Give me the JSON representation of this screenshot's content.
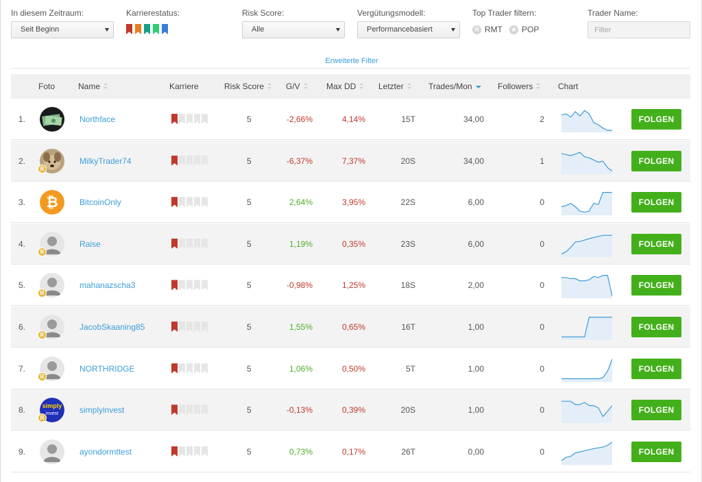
{
  "filters": {
    "period": {
      "label": "In diesem Zeitraum:",
      "value": "Seit Beginn"
    },
    "career": {
      "label": "Karrierestatus:",
      "flag_colors": [
        "#c0392b",
        "#e67e22",
        "#16a085",
        "#2ecc71",
        "#3b7fd4"
      ]
    },
    "risk": {
      "label": "Risk Score:",
      "value": "Alle"
    },
    "compensation": {
      "label": "Vergütungsmodell:",
      "value": "Performancebasiert"
    },
    "top_trader": {
      "label": "Top Trader filtern:",
      "rmt": "RMT",
      "pop": "POP",
      "rmt_icon": "R",
      "pop_icon": "★"
    },
    "trader_name": {
      "label": "Trader Name:",
      "placeholder": "Filter"
    },
    "advanced_link": "Erweiterte Filter"
  },
  "table": {
    "headers": {
      "photo": "Foto",
      "name": "Name",
      "career": "Karriere",
      "risk": "Risk Score",
      "gv": "G/V",
      "maxdd": "Max DD",
      "last": "Letzter",
      "trades": "Trades/Mon",
      "followers": "Followers",
      "chart": "Chart"
    },
    "follow_label": "FOLGEN",
    "badge_letter": "R",
    "colors": {
      "negative": "#c0392b",
      "positive": "#4caf2b",
      "follow_button": "#43b01b",
      "link": "#3d9dd9"
    },
    "rows": [
      {
        "rank": "1.",
        "name": "Northface",
        "avatar": "photo-cash",
        "badge": false,
        "career_level": 1,
        "risk": "5",
        "gv": "-2,66%",
        "maxdd": "4,14%",
        "last": "15T",
        "trades": "34,00",
        "followers": "2",
        "trend": [
          0.7,
          0.75,
          0.6,
          0.85,
          0.65,
          0.9,
          0.75,
          0.35,
          0.25,
          0.1,
          0.0,
          0.0
        ]
      },
      {
        "rank": "2.",
        "name": "MilkyTrader74",
        "avatar": "photo-dog",
        "badge": true,
        "career_level": 1,
        "risk": "5",
        "gv": "-6,37%",
        "maxdd": "7,37%",
        "last": "20S",
        "trades": "34,00",
        "followers": "1",
        "trend": [
          0.85,
          0.8,
          0.75,
          0.82,
          0.9,
          0.7,
          0.65,
          0.55,
          0.45,
          0.5,
          0.2,
          0.05
        ]
      },
      {
        "rank": "3.",
        "name": "BitcoinOnly",
        "avatar": "bitcoin-logo",
        "badge": false,
        "career_level": 1,
        "risk": "5",
        "gv": "2,64%",
        "maxdd": "3,95%",
        "last": "22S",
        "trades": "6,00",
        "followers": "0",
        "trend": [
          0.3,
          0.35,
          0.45,
          0.3,
          0.1,
          0.05,
          0.1,
          0.45,
          0.4,
          0.95,
          0.95,
          0.95
        ]
      },
      {
        "rank": "4.",
        "name": "Raise",
        "avatar": "default-user",
        "badge": true,
        "career_level": 1,
        "risk": "5",
        "gv": "1,19%",
        "maxdd": "0,35%",
        "last": "23S",
        "trades": "6,00",
        "followers": "0",
        "trend": [
          0.05,
          0.15,
          0.35,
          0.6,
          0.62,
          0.68,
          0.75,
          0.8,
          0.85,
          0.9,
          0.9,
          0.9
        ]
      },
      {
        "rank": "5.",
        "name": "mahanazscha3",
        "avatar": "default-user",
        "badge": true,
        "career_level": 1,
        "risk": "5",
        "gv": "-0,98%",
        "maxdd": "1,25%",
        "last": "18S",
        "trades": "2,00",
        "followers": "0",
        "trend": [
          0.85,
          0.85,
          0.8,
          0.8,
          0.7,
          0.7,
          0.75,
          0.9,
          0.85,
          0.95,
          0.95,
          0.0
        ]
      },
      {
        "rank": "6.",
        "name": "JacobSkaaning85",
        "avatar": "default-user",
        "badge": true,
        "career_level": 1,
        "risk": "5",
        "gv": "1,55%",
        "maxdd": "0,65%",
        "last": "16T",
        "trades": "1,00",
        "followers": "0",
        "trend": [
          0.05,
          0.05,
          0.05,
          0.05,
          0.05,
          0.05,
          0.95,
          0.95,
          0.95,
          0.95,
          0.95,
          0.95
        ]
      },
      {
        "rank": "7.",
        "name": "NORTHRIDGE",
        "avatar": "default-user",
        "badge": true,
        "career_level": 1,
        "risk": "5",
        "gv": "1,06%",
        "maxdd": "0,50%",
        "last": "5T",
        "trades": "1,00",
        "followers": "0",
        "trend": [
          0.05,
          0.05,
          0.05,
          0.05,
          0.05,
          0.05,
          0.05,
          0.05,
          0.05,
          0.1,
          0.4,
          0.95
        ]
      },
      {
        "rank": "8.",
        "name": "simplyinvest",
        "avatar": "simply-invest-logo",
        "badge": true,
        "career_level": 1,
        "risk": "5",
        "gv": "-0,13%",
        "maxdd": "0,39%",
        "last": "20S",
        "trades": "1,00",
        "followers": "0",
        "trend": [
          0.9,
          0.9,
          0.9,
          0.75,
          0.75,
          0.85,
          0.7,
          0.7,
          0.6,
          0.2,
          0.45,
          0.7
        ]
      },
      {
        "rank": "9.",
        "name": "ayondormttest",
        "avatar": "default-user",
        "badge": false,
        "career_level": 1,
        "risk": "5",
        "gv": "0,73%",
        "maxdd": "0,17%",
        "last": "26T",
        "trades": "0,00",
        "followers": "0",
        "trend": [
          0.1,
          0.25,
          0.3,
          0.45,
          0.5,
          0.55,
          0.6,
          0.65,
          0.68,
          0.72,
          0.8,
          0.95
        ]
      }
    ]
  }
}
